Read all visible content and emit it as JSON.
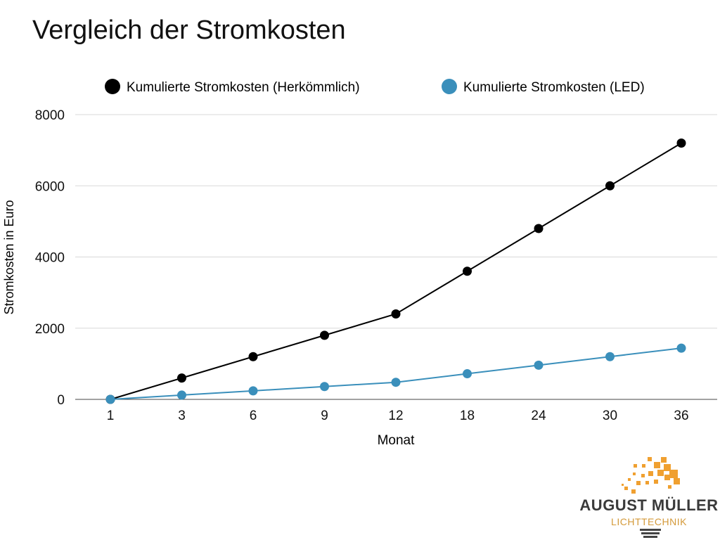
{
  "chart_data": {
    "type": "line",
    "title": "Vergleich der Stromkosten",
    "xlabel": "Monat",
    "ylabel": "Stromkosten in Euro",
    "categories": [
      "1",
      "3",
      "6",
      "9",
      "12",
      "18",
      "24",
      "30",
      "36"
    ],
    "ylim": [
      0,
      8000
    ],
    "yticks": [
      0,
      2000,
      4000,
      6000,
      8000
    ],
    "grid": true,
    "legend_position": "top",
    "series": [
      {
        "name": "Kumulierte Stromkosten (Herkömmlich)",
        "color": "#000000",
        "values": [
          0,
          600,
          1200,
          1800,
          2400,
          3600,
          4800,
          6000,
          7200
        ]
      },
      {
        "name": "Kumulierte Stromkosten (LED)",
        "color": "#3a8fbb",
        "values": [
          0,
          120,
          240,
          360,
          480,
          720,
          960,
          1200,
          1440
        ]
      }
    ]
  },
  "logo": {
    "name": "AUGUST MÜLLER",
    "sub": "LICHTTECHNIK",
    "color": "#f0a030"
  }
}
